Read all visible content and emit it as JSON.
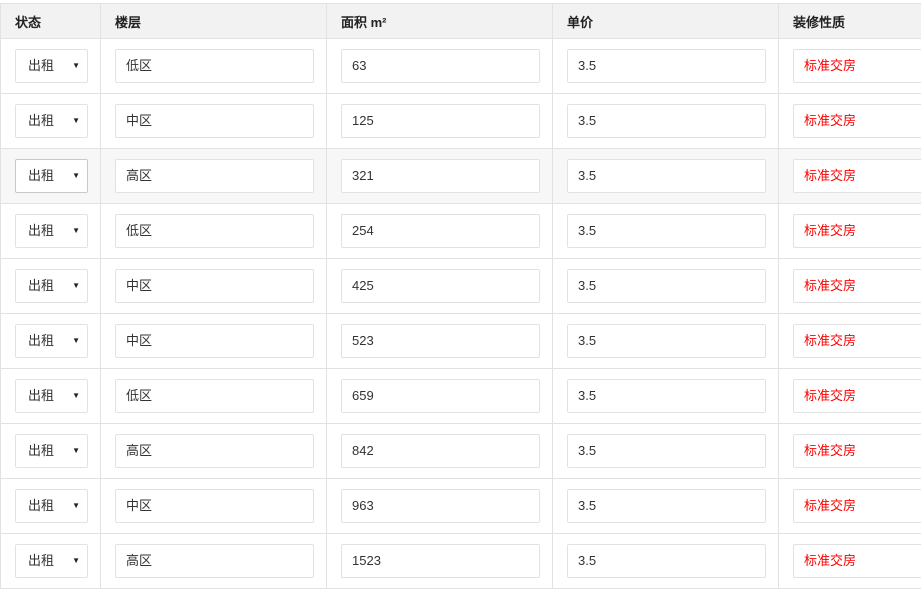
{
  "headers": [
    "状态",
    "楼层",
    "面积 m²",
    "单价",
    "装修性质"
  ],
  "accent_color": "#ff0000",
  "rows": [
    {
      "status": "出租",
      "floor": "低区",
      "area": "63",
      "price": "3.5",
      "decor": "标准交房"
    },
    {
      "status": "出租",
      "floor": "中区",
      "area": "125",
      "price": "3.5",
      "decor": "标准交房"
    },
    {
      "status": "出租",
      "floor": "高区",
      "area": "321",
      "price": "3.5",
      "decor": "标准交房"
    },
    {
      "status": "出租",
      "floor": "低区",
      "area": "254",
      "price": "3.5",
      "decor": "标准交房"
    },
    {
      "status": "出租",
      "floor": "中区",
      "area": "425",
      "price": "3.5",
      "decor": "标准交房"
    },
    {
      "status": "出租",
      "floor": "中区",
      "area": "523",
      "price": "3.5",
      "decor": "标准交房"
    },
    {
      "status": "出租",
      "floor": "低区",
      "area": "659",
      "price": "3.5",
      "decor": "标准交房"
    },
    {
      "status": "出租",
      "floor": "高区",
      "area": "842",
      "price": "3.5",
      "decor": "标准交房"
    },
    {
      "status": "出租",
      "floor": "中区",
      "area": "963",
      "price": "3.5",
      "decor": "标准交房"
    },
    {
      "status": "出租",
      "floor": "高区",
      "area": "1523",
      "price": "3.5",
      "decor": "标准交房"
    }
  ]
}
